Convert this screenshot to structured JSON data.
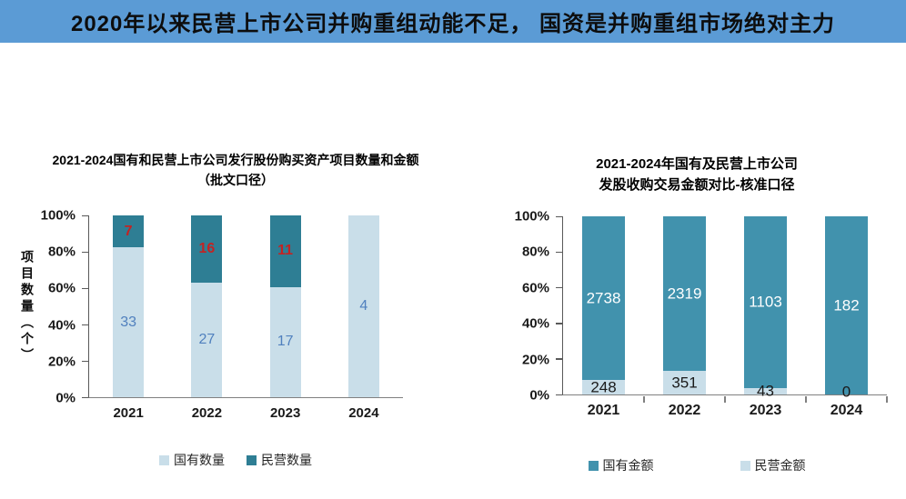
{
  "header": {
    "title": "2020年以来民营上市公司并购重组动能不足， 国资是并购重组市场绝对主力",
    "bg_color": "#5B9BD5"
  },
  "chart_data": [
    {
      "type": "bar",
      "variant": "stacked-100-percent",
      "title_lines": [
        "2021-2024国有和民营上市公司发行股份购买资产项目数量和金额",
        "（批文口径）"
      ],
      "ylabel": "项目数量（个）",
      "xlabel": "",
      "categories": [
        "2021",
        "2022",
        "2023",
        "2024"
      ],
      "series": [
        {
          "name": "国有数量",
          "color": "#C9DEE9",
          "label_color": "#5080BE",
          "label_bold": false,
          "values": [
            33,
            27,
            17,
            4
          ],
          "labels": [
            "33",
            "27",
            "17",
            "4"
          ]
        },
        {
          "name": "民营数量",
          "color": "#2E7E94",
          "label_color": "#C42323",
          "label_bold": true,
          "values": [
            7,
            16,
            11,
            0
          ],
          "labels": [
            "7",
            "16",
            "11",
            ""
          ]
        }
      ],
      "yticks": [
        "0%",
        "20%",
        "40%",
        "60%",
        "80%",
        "100%"
      ],
      "ylim": [
        0,
        100
      ],
      "grid": false,
      "legend_position": "bottom",
      "legend": [
        {
          "label": "国有数量",
          "color": "#C9DEE9"
        },
        {
          "label": "民营数量",
          "color": "#2E7E94"
        }
      ],
      "x_boundary_ticks": false
    },
    {
      "type": "bar",
      "variant": "stacked-100-percent",
      "title_lines": [
        "2021-2024年国有及民营上市公司",
        "发股收购交易金额对比-核准口径"
      ],
      "ylabel": "",
      "xlabel": "",
      "categories": [
        "2021",
        "2022",
        "2023",
        "2024"
      ],
      "series": [
        {
          "name": "民营金额",
          "color": "#C9DEE9",
          "label_color": "#1A1A1A",
          "label_bold": false,
          "values": [
            248,
            351,
            43,
            0
          ],
          "labels": [
            "248",
            "351",
            "43",
            "0"
          ]
        },
        {
          "name": "国有金额",
          "color": "#4192AD",
          "label_color": "#FFFFFF",
          "label_bold": false,
          "values": [
            2738,
            2319,
            1103,
            182
          ],
          "labels": [
            "2738",
            "2319",
            "1103",
            "182"
          ]
        }
      ],
      "yticks": [
        "0%",
        "20%",
        "40%",
        "60%",
        "80%",
        "100%"
      ],
      "ylim": [
        0,
        100
      ],
      "grid": false,
      "legend_position": "bottom",
      "legend": [
        {
          "label": "国有金额",
          "color": "#4192AD"
        },
        {
          "label": "民营金额",
          "color": "#C9DEE9"
        }
      ],
      "x_boundary_ticks": true
    }
  ]
}
